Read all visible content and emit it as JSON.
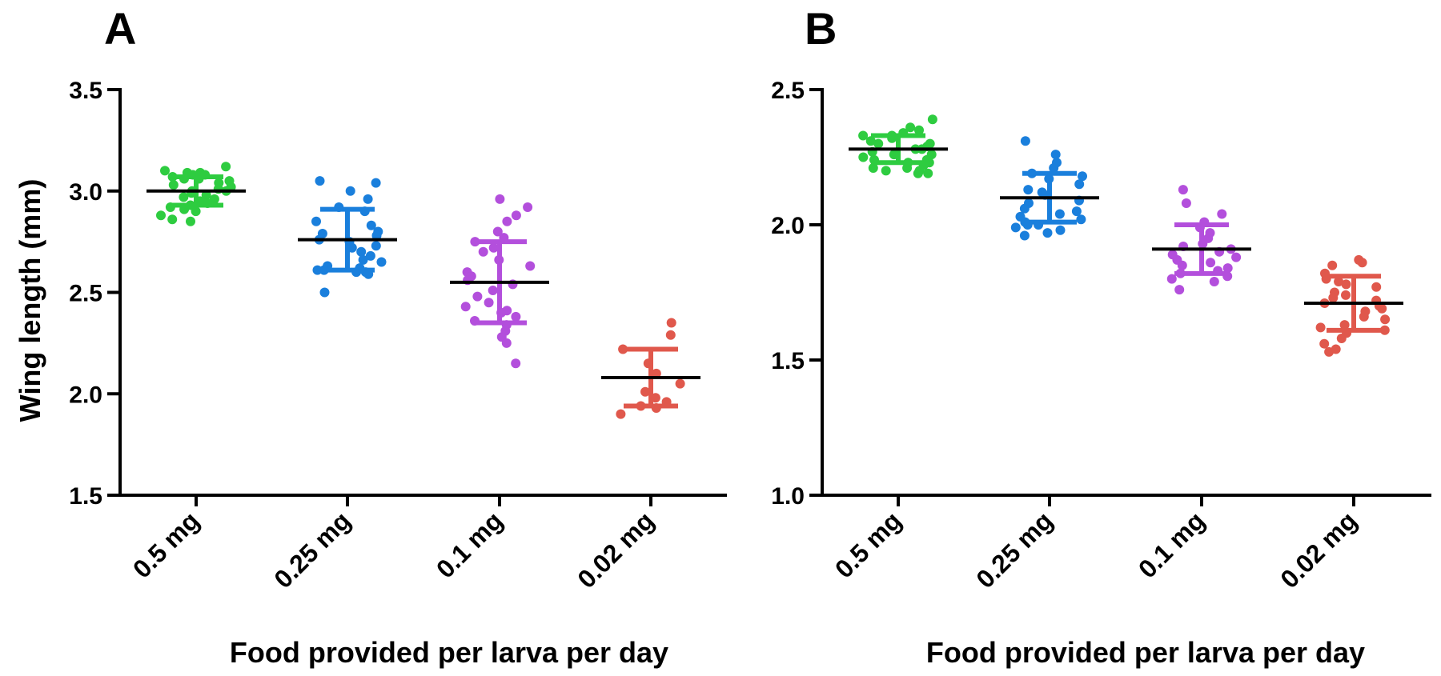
{
  "chart_data": [
    {
      "type": "scatter",
      "panel_label": "A",
      "ylabel": "Wing length (mm)",
      "xlabel": "Food provided per larva per day",
      "ylim": [
        1.5,
        3.5
      ],
      "yticks": [
        1.5,
        2.0,
        2.5,
        3.0,
        3.5
      ],
      "ytick_labels": [
        "1.5",
        "2.0",
        "2.5",
        "3.0",
        "3.5"
      ],
      "categories": [
        "0.5 mg",
        "0.25 mg",
        "0.1 mg",
        "0.02 mg"
      ],
      "groups": [
        {
          "name": "0.5 mg",
          "color": "#2ecc40",
          "mean": 3.0,
          "sd_low": 2.93,
          "sd_high": 3.07,
          "points": [
            3.12,
            3.1,
            3.09,
            3.09,
            3.08,
            3.08,
            3.07,
            3.06,
            3.06,
            3.05,
            3.04,
            3.03,
            3.02,
            3.01,
            3.0,
            3.0,
            2.99,
            2.98,
            2.97,
            2.96,
            2.95,
            2.94,
            2.93,
            2.92,
            2.91,
            2.9,
            2.88,
            2.86,
            2.85
          ]
        },
        {
          "name": "0.25 mg",
          "color": "#1a7fdc",
          "mean": 2.76,
          "sd_low": 2.61,
          "sd_high": 2.91,
          "points": [
            3.05,
            3.04,
            3.0,
            2.96,
            2.92,
            2.9,
            2.85,
            2.83,
            2.8,
            2.79,
            2.78,
            2.76,
            2.75,
            2.73,
            2.72,
            2.7,
            2.68,
            2.66,
            2.65,
            2.63,
            2.62,
            2.61,
            2.61,
            2.6,
            2.6,
            2.59,
            2.5
          ]
        },
        {
          "name": "0.1 mg",
          "color": "#b34fdc",
          "mean": 2.55,
          "sd_low": 2.35,
          "sd_high": 2.75,
          "points": [
            2.96,
            2.92,
            2.88,
            2.85,
            2.8,
            2.77,
            2.75,
            2.72,
            2.7,
            2.66,
            2.63,
            2.6,
            2.58,
            2.56,
            2.54,
            2.51,
            2.48,
            2.45,
            2.43,
            2.41,
            2.4,
            2.38,
            2.36,
            2.34,
            2.31,
            2.28,
            2.25,
            2.15
          ]
        },
        {
          "name": "0.02 mg",
          "color": "#e0584c",
          "mean": 2.08,
          "sd_low": 1.94,
          "sd_high": 2.22,
          "points": [
            2.35,
            2.29,
            2.22,
            2.15,
            2.1,
            2.05,
            2.01,
            1.98,
            1.96,
            1.94,
            1.93,
            1.9
          ]
        }
      ]
    },
    {
      "type": "scatter",
      "panel_label": "B",
      "ylabel": "",
      "xlabel": "Food provided per larva per day",
      "ylim": [
        1.0,
        2.5
      ],
      "yticks": [
        1.0,
        1.5,
        2.0,
        2.5
      ],
      "ytick_labels": [
        "1.0",
        "1.5",
        "2.0",
        "2.5"
      ],
      "categories": [
        "0.5 mg",
        "0.25 mg",
        "0.1 mg",
        "0.02 mg"
      ],
      "groups": [
        {
          "name": "0.5 mg",
          "color": "#2ecc40",
          "mean": 2.28,
          "sd_low": 2.23,
          "sd_high": 2.33,
          "points": [
            2.39,
            2.36,
            2.35,
            2.34,
            2.33,
            2.33,
            2.32,
            2.31,
            2.3,
            2.3,
            2.29,
            2.28,
            2.28,
            2.27,
            2.26,
            2.26,
            2.25,
            2.24,
            2.24,
            2.23,
            2.23,
            2.22,
            2.21,
            2.21,
            2.2,
            2.2,
            2.19,
            2.19
          ]
        },
        {
          "name": "0.25 mg",
          "color": "#1a7fdc",
          "mean": 2.1,
          "sd_low": 2.01,
          "sd_high": 2.19,
          "points": [
            2.31,
            2.26,
            2.23,
            2.21,
            2.19,
            2.18,
            2.17,
            2.15,
            2.13,
            2.12,
            2.11,
            2.09,
            2.08,
            2.06,
            2.05,
            2.04,
            2.03,
            2.02,
            2.01,
            2.0,
            2.0,
            1.99,
            1.98,
            1.97,
            1.96
          ]
        },
        {
          "name": "0.1 mg",
          "color": "#b34fdc",
          "mean": 1.91,
          "sd_low": 1.82,
          "sd_high": 2.0,
          "points": [
            2.13,
            2.08,
            2.04,
            2.01,
            1.99,
            1.97,
            1.95,
            1.93,
            1.92,
            1.91,
            1.9,
            1.89,
            1.88,
            1.87,
            1.86,
            1.85,
            1.84,
            1.83,
            1.82,
            1.81,
            1.8,
            1.79,
            1.76
          ]
        },
        {
          "name": "0.02 mg",
          "color": "#e0584c",
          "mean": 1.71,
          "sd_low": 1.61,
          "sd_high": 1.81,
          "points": [
            1.87,
            1.86,
            1.85,
            1.82,
            1.8,
            1.79,
            1.78,
            1.77,
            1.75,
            1.74,
            1.73,
            1.72,
            1.71,
            1.7,
            1.69,
            1.68,
            1.66,
            1.65,
            1.63,
            1.62,
            1.61,
            1.6,
            1.58,
            1.56,
            1.54,
            1.53
          ]
        }
      ]
    }
  ]
}
